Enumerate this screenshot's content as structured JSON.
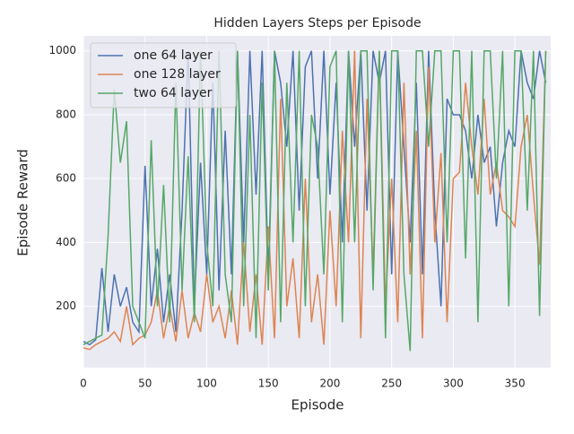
{
  "chart_data": {
    "type": "line",
    "title": "Hidden Layers Steps per Episode",
    "x_label": "Episode",
    "y_label": "Episode Reward",
    "x": [
      0,
      5,
      10,
      15,
      20,
      25,
      30,
      35,
      40,
      45,
      50,
      55,
      60,
      65,
      70,
      75,
      80,
      85,
      90,
      95,
      100,
      105,
      110,
      115,
      120,
      125,
      130,
      135,
      140,
      145,
      150,
      155,
      160,
      165,
      170,
      175,
      180,
      185,
      190,
      195,
      200,
      205,
      210,
      215,
      220,
      225,
      230,
      235,
      240,
      245,
      250,
      255,
      260,
      265,
      270,
      275,
      280,
      285,
      290,
      295,
      300,
      305,
      310,
      315,
      320,
      325,
      330,
      335,
      340,
      345,
      350,
      355,
      360,
      365,
      370,
      375
    ],
    "series": [
      {
        "name": "one 64 layer",
        "color": "#4c72b0",
        "values": [
          90,
          80,
          95,
          320,
          120,
          300,
          200,
          260,
          150,
          120,
          640,
          200,
          380,
          150,
          300,
          120,
          500,
          1000,
          200,
          650,
          300,
          900,
          250,
          750,
          300,
          1000,
          400,
          1000,
          550,
          1000,
          300,
          1000,
          900,
          700,
          1000,
          500,
          950,
          1000,
          600,
          1000,
          550,
          900,
          400,
          1000,
          700,
          1000,
          500,
          1000,
          900,
          1000,
          300,
          1000,
          700,
          400,
          900,
          300,
          1000,
          500,
          200,
          850,
          800,
          800,
          750,
          600,
          800,
          650,
          700,
          450,
          650,
          750,
          700,
          1000,
          900,
          850,
          1000,
          900
        ]
      },
      {
        "name": "one 128 layer",
        "color": "#dd8452",
        "values": [
          70,
          65,
          80,
          90,
          100,
          120,
          90,
          200,
          80,
          100,
          110,
          150,
          250,
          100,
          200,
          90,
          250,
          100,
          180,
          120,
          300,
          150,
          200,
          100,
          250,
          80,
          400,
          120,
          300,
          80,
          450,
          100,
          850,
          200,
          350,
          100,
          600,
          150,
          300,
          80,
          500,
          200,
          750,
          400,
          1000,
          100,
          850,
          300,
          1000,
          200,
          600,
          150,
          900,
          300,
          750,
          100,
          950,
          400,
          680,
          150,
          600,
          620,
          900,
          700,
          550,
          850,
          550,
          650,
          500,
          480,
          450,
          700,
          800,
          550,
          330,
          1000
        ]
      },
      {
        "name": "two 64 layer",
        "color": "#55a868",
        "values": [
          80,
          90,
          100,
          110,
          420,
          880,
          650,
          780,
          200,
          150,
          100,
          720,
          200,
          580,
          150,
          900,
          250,
          670,
          150,
          1000,
          400,
          200,
          1000,
          300,
          150,
          1000,
          200,
          800,
          100,
          900,
          250,
          1000,
          150,
          900,
          400,
          1000,
          200,
          800,
          700,
          300,
          950,
          1000,
          150,
          1000,
          400,
          1000,
          1000,
          250,
          1000,
          100,
          1000,
          1000,
          300,
          60,
          1000,
          1000,
          700,
          1000,
          1000,
          400,
          1000,
          1000,
          350,
          1000,
          150,
          1000,
          1000,
          600,
          1000,
          200,
          1000,
          1000,
          500,
          1000,
          170,
          1000
        ]
      }
    ],
    "xlim": [
      0,
      379
    ],
    "ylim": [
      8,
      1047
    ],
    "xticks": [
      0,
      50,
      100,
      150,
      200,
      250,
      300,
      350
    ],
    "yticks": [
      200,
      400,
      600,
      800,
      1000
    ],
    "grid": true,
    "legend": "upper left"
  }
}
